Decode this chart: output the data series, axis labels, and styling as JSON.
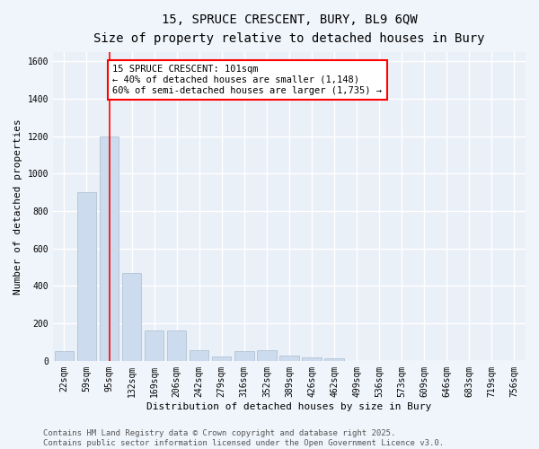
{
  "title_line1": "15, SPRUCE CRESCENT, BURY, BL9 6QW",
  "title_line2": "Size of property relative to detached houses in Bury",
  "xlabel": "Distribution of detached houses by size in Bury",
  "ylabel": "Number of detached properties",
  "bar_color": "#ccdcee",
  "bar_edge_color": "#aabcce",
  "background_color": "#eaf0f8",
  "grid_color": "#ffffff",
  "categories": [
    "22sqm",
    "59sqm",
    "95sqm",
    "132sqm",
    "169sqm",
    "206sqm",
    "242sqm",
    "279sqm",
    "316sqm",
    "352sqm",
    "389sqm",
    "426sqm",
    "462sqm",
    "499sqm",
    "536sqm",
    "573sqm",
    "609sqm",
    "646sqm",
    "683sqm",
    "719sqm",
    "756sqm"
  ],
  "values": [
    50,
    900,
    1200,
    470,
    160,
    160,
    55,
    25,
    50,
    55,
    30,
    20,
    15,
    0,
    0,
    0,
    0,
    0,
    0,
    0,
    0
  ],
  "ylim": [
    0,
    1650
  ],
  "yticks": [
    0,
    200,
    400,
    600,
    800,
    1000,
    1200,
    1400,
    1600
  ],
  "property_line_x": 2,
  "annotation_title": "15 SPRUCE CRESCENT: 101sqm",
  "annotation_line1": "← 40% of detached houses are smaller (1,148)",
  "annotation_line2": "60% of semi-detached houses are larger (1,735) →",
  "footer_line1": "Contains HM Land Registry data © Crown copyright and database right 2025.",
  "footer_line2": "Contains public sector information licensed under the Open Government Licence v3.0.",
  "title_fontsize": 10,
  "subtitle_fontsize": 9,
  "annotation_fontsize": 7.5,
  "footer_fontsize": 6.5,
  "tick_fontsize": 7,
  "ylabel_fontsize": 8,
  "xlabel_fontsize": 8
}
